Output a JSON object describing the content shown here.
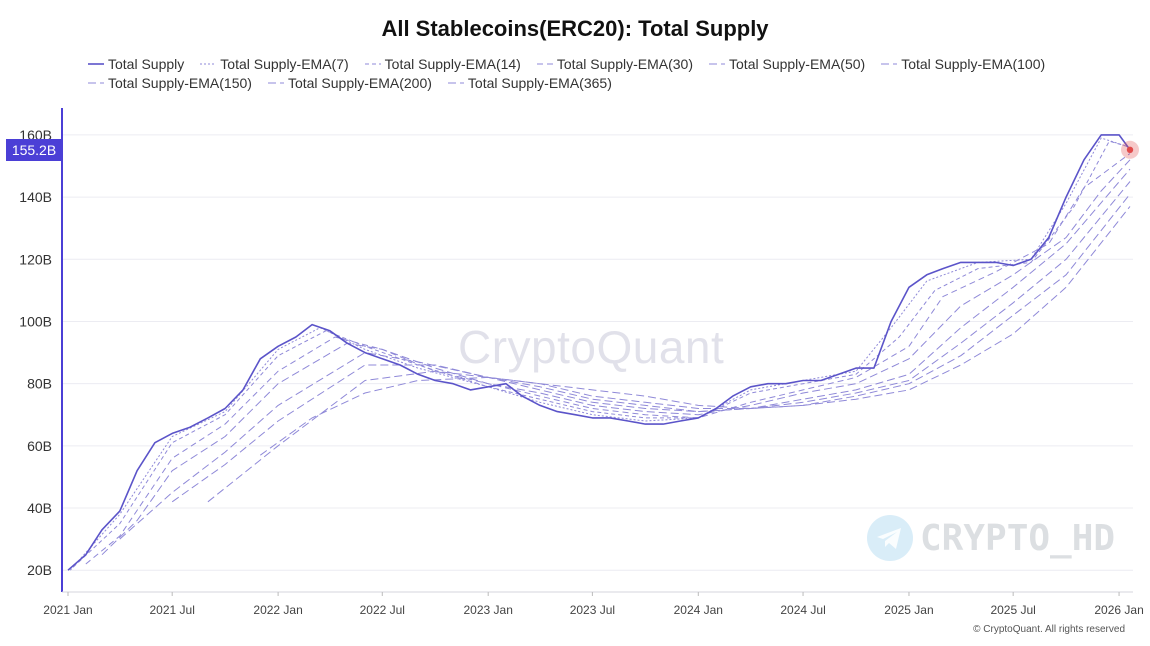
{
  "title": "All Stablecoins(ERC20): Total Supply",
  "watermark": "CryptoQuant",
  "watermark_channel": "CRYPTO_HD",
  "copyright": "© CryptoQuant. All rights reserved",
  "last_value_label": "155.2B",
  "colors": {
    "accent": "#4b3fd6",
    "line": "#5b54c9",
    "ema": "#8f89d8",
    "grid": "#ececf2",
    "marker": "#e04b4b"
  },
  "legend_rows": [
    [
      0,
      1,
      2,
      3,
      4,
      5
    ],
    [
      6,
      7,
      8
    ]
  ],
  "chart_data": {
    "type": "line",
    "title": "All Stablecoins(ERC20): Total Supply",
    "xlabel": "",
    "ylabel": "",
    "x_range": [
      "2021-01-01",
      "2026-01-20"
    ],
    "ylim": [
      13,
      168
    ],
    "y_ticks": [
      20,
      40,
      60,
      80,
      100,
      120,
      140,
      160
    ],
    "y_tick_labels": [
      "20B",
      "40B",
      "60B",
      "80B",
      "100B",
      "120B",
      "140B",
      "160B"
    ],
    "x_ticks": [
      "2021-01-01",
      "2021-07-01",
      "2022-01-01",
      "2022-07-01",
      "2023-01-01",
      "2023-07-01",
      "2024-01-01",
      "2024-07-01",
      "2025-01-01",
      "2025-07-01",
      "2026-01-01"
    ],
    "x_tick_labels": [
      "2021 Jan",
      "2021 Jul",
      "2022 Jan",
      "2022 Jul",
      "2023 Jan",
      "2023 Jul",
      "2024 Jan",
      "2024 Jul",
      "2025 Jan",
      "2025 Jul",
      "2026 Jan"
    ],
    "grid": true,
    "legend_position": "top",
    "last_value": 155.2,
    "series": [
      {
        "name": "Total Supply",
        "style": "solid",
        "x": [
          "2021-01-01",
          "2021-02-01",
          "2021-03-01",
          "2021-04-01",
          "2021-05-01",
          "2021-06-01",
          "2021-07-01",
          "2021-08-01",
          "2021-09-01",
          "2021-10-01",
          "2021-11-01",
          "2021-12-01",
          "2022-01-01",
          "2022-02-01",
          "2022-03-01",
          "2022-04-01",
          "2022-05-01",
          "2022-06-01",
          "2022-07-01",
          "2022-08-01",
          "2022-09-01",
          "2022-10-01",
          "2022-11-01",
          "2022-12-01",
          "2023-01-01",
          "2023-02-01",
          "2023-03-01",
          "2023-04-01",
          "2023-05-01",
          "2023-06-01",
          "2023-07-01",
          "2023-08-01",
          "2023-09-01",
          "2023-10-01",
          "2023-11-01",
          "2023-12-01",
          "2024-01-01",
          "2024-02-01",
          "2024-03-01",
          "2024-04-01",
          "2024-05-01",
          "2024-06-01",
          "2024-07-01",
          "2024-08-01",
          "2024-09-01",
          "2024-10-01",
          "2024-11-01",
          "2024-12-01",
          "2025-01-01",
          "2025-02-01",
          "2025-03-01",
          "2025-04-01",
          "2025-05-01",
          "2025-06-01",
          "2025-07-01",
          "2025-08-01",
          "2025-09-01",
          "2025-10-01",
          "2025-11-01",
          "2025-12-01",
          "2026-01-01",
          "2026-01-20"
        ],
        "values": [
          20,
          25,
          33,
          39,
          52,
          61,
          64,
          66,
          69,
          72,
          78,
          88,
          92,
          95,
          99,
          97,
          93,
          90,
          88,
          86,
          83,
          81,
          80,
          78,
          79,
          80,
          76,
          73,
          71,
          70,
          69,
          69,
          68,
          67,
          67,
          68,
          69,
          72,
          76,
          79,
          80,
          80,
          81,
          81,
          83,
          85,
          85,
          100,
          111,
          115,
          117,
          119,
          119,
          119,
          118,
          120,
          127,
          140,
          152,
          160,
          160,
          155.2
        ]
      },
      {
        "name": "Total Supply-EMA(7)",
        "style": "dash-fine",
        "x": [
          "2021-01-05",
          "2021-04-01",
          "2021-07-01",
          "2021-10-01",
          "2022-01-01",
          "2022-03-15",
          "2022-06-01",
          "2022-09-01",
          "2023-01-01",
          "2023-04-01",
          "2023-07-01",
          "2023-10-01",
          "2024-01-01",
          "2024-04-01",
          "2024-07-01",
          "2024-10-01",
          "2024-12-01",
          "2025-02-01",
          "2025-05-01",
          "2025-08-01",
          "2025-10-01",
          "2025-12-01",
          "2026-01-20"
        ],
        "values": [
          20,
          38,
          63,
          71,
          91,
          98,
          91,
          85,
          79,
          74,
          70,
          68,
          69,
          78,
          81,
          84,
          98,
          113,
          119,
          120,
          138,
          159,
          156
        ]
      },
      {
        "name": "Total Supply-EMA(14)",
        "style": "dash-short",
        "x": [
          "2021-01-10",
          "2021-04-01",
          "2021-07-01",
          "2021-10-01",
          "2022-01-01",
          "2022-03-25",
          "2022-06-01",
          "2022-09-01",
          "2023-01-01",
          "2023-04-01",
          "2023-07-01",
          "2023-10-01",
          "2024-01-01",
          "2024-04-01",
          "2024-07-01",
          "2024-10-01",
          "2024-12-15",
          "2025-02-15",
          "2025-05-01",
          "2025-08-01",
          "2025-10-15",
          "2025-12-15",
          "2026-01-20"
        ],
        "values": [
          21,
          35,
          61,
          70,
          89,
          97,
          92,
          86,
          79,
          75,
          71,
          69,
          69,
          77,
          80,
          83,
          95,
          110,
          117,
          119,
          137,
          158,
          156
        ]
      },
      {
        "name": "Total Supply-EMA(30)",
        "style": "dash-med",
        "x": [
          "2021-02-01",
          "2021-04-01",
          "2021-07-01",
          "2021-10-01",
          "2022-01-01",
          "2022-04-10",
          "2022-07-01",
          "2022-10-01",
          "2023-01-01",
          "2023-04-01",
          "2023-07-01",
          "2023-10-01",
          "2024-01-01",
          "2024-04-01",
          "2024-07-01",
          "2024-10-01",
          "2025-01-01",
          "2025-03-01",
          "2025-06-01",
          "2025-09-01",
          "2025-11-01",
          "2026-01-20"
        ],
        "values": [
          22,
          31,
          56,
          67,
          84,
          95,
          91,
          84,
          80,
          76,
          72,
          70,
          69,
          74,
          78,
          82,
          92,
          108,
          116,
          125,
          143,
          154
        ]
      },
      {
        "name": "Total Supply-EMA(50)",
        "style": "dash-long",
        "x": [
          "2021-03-01",
          "2021-05-01",
          "2021-07-01",
          "2021-10-01",
          "2022-01-01",
          "2022-05-01",
          "2022-07-01",
          "2022-10-01",
          "2023-01-01",
          "2023-04-01",
          "2023-07-01",
          "2023-10-01",
          "2024-01-01",
          "2024-04-01",
          "2024-07-01",
          "2024-10-01",
          "2025-01-01",
          "2025-04-01",
          "2025-07-01",
          "2025-10-01",
          "2025-12-01",
          "2026-01-20"
        ],
        "values": [
          25,
          36,
          52,
          63,
          80,
          93,
          91,
          85,
          80,
          77,
          73,
          71,
          70,
          73,
          77,
          80,
          88,
          105,
          115,
          127,
          142,
          152
        ]
      },
      {
        "name": "Total Supply-EMA(100)",
        "style": "dash-long",
        "x": [
          "2021-04-01",
          "2021-07-01",
          "2021-10-01",
          "2022-01-01",
          "2022-06-01",
          "2022-09-01",
          "2023-01-01",
          "2023-04-01",
          "2023-07-01",
          "2023-10-01",
          "2024-01-01",
          "2024-04-01",
          "2024-07-01",
          "2024-10-01",
          "2025-01-01",
          "2025-04-01",
          "2025-07-01",
          "2025-10-01",
          "2026-01-20"
        ],
        "values": [
          30,
          45,
          58,
          73,
          90,
          87,
          82,
          78,
          74,
          72,
          71,
          72,
          75,
          78,
          83,
          98,
          111,
          125,
          149
        ]
      },
      {
        "name": "Total Supply-EMA(150)",
        "style": "dash-long",
        "x": [
          "2021-07-01",
          "2021-10-01",
          "2022-01-01",
          "2022-06-01",
          "2022-10-01",
          "2023-01-01",
          "2023-04-01",
          "2023-07-01",
          "2023-10-01",
          "2024-01-01",
          "2024-04-01",
          "2024-07-01",
          "2024-10-01",
          "2025-01-01",
          "2025-04-01",
          "2025-07-01",
          "2025-10-01",
          "2026-01-20"
        ],
        "values": [
          42,
          54,
          68,
          86,
          86,
          82,
          79,
          75,
          73,
          71,
          72,
          74,
          77,
          81,
          93,
          106,
          120,
          145
        ]
      },
      {
        "name": "Total Supply-EMA(200)",
        "style": "dash-long",
        "x": [
          "2021-09-01",
          "2022-01-01",
          "2022-06-01",
          "2022-10-01",
          "2023-01-01",
          "2023-04-01",
          "2023-07-01",
          "2023-10-01",
          "2024-01-01",
          "2024-04-01",
          "2024-07-01",
          "2024-10-01",
          "2025-01-01",
          "2025-04-01",
          "2025-07-01",
          "2025-10-01",
          "2026-01-20"
        ],
        "values": [
          42,
          60,
          81,
          84,
          82,
          80,
          76,
          74,
          72,
          72,
          73,
          76,
          80,
          89,
          102,
          115,
          141
        ]
      },
      {
        "name": "Total Supply-EMA(365)",
        "style": "dash-long",
        "x": [
          "2021-12-01",
          "2022-03-01",
          "2022-06-01",
          "2022-09-01",
          "2023-01-01",
          "2023-04-01",
          "2023-07-01",
          "2023-10-01",
          "2024-01-01",
          "2024-04-01",
          "2024-07-01",
          "2024-10-01",
          "2025-01-01",
          "2025-04-01",
          "2025-07-01",
          "2025-10-01",
          "2026-01-20"
        ],
        "values": [
          57,
          69,
          77,
          81,
          82,
          80,
          78,
          76,
          73,
          72,
          73,
          75,
          78,
          86,
          96,
          111,
          137
        ]
      }
    ]
  }
}
